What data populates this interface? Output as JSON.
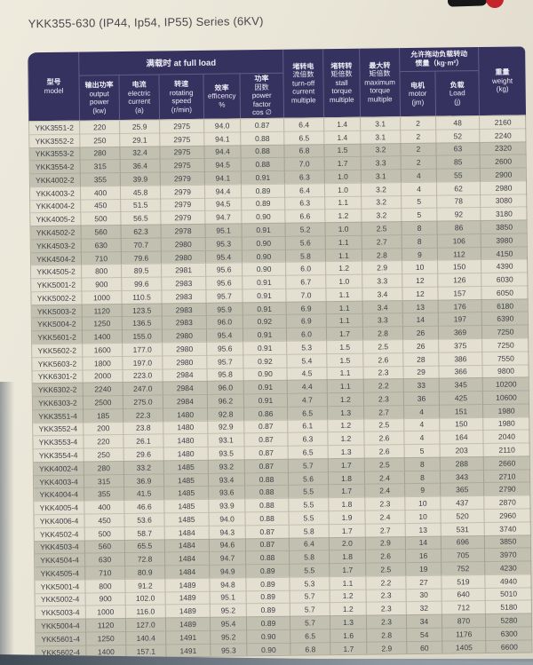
{
  "header": {
    "title": "YKK355-630 (IP44, Ip54, IP55) Series (6KV)"
  },
  "colors": {
    "header_bg": "#363260",
    "row_light": "#e3dfd1",
    "row_shaded": "#c2c0b1",
    "logo_bar": "#17171a",
    "logo_dot": "#c5242b"
  },
  "table": {
    "group_full_load": "满载时 at full load",
    "group_inertia_line1": "允许拖动负载转动",
    "group_inertia_line2": "惯量（kg·m²）",
    "columns": [
      {
        "key": "model",
        "lines": [
          "型号",
          "model"
        ]
      },
      {
        "key": "output-power",
        "lines": [
          "输出功率",
          "output",
          "power",
          "(kw)"
        ]
      },
      {
        "key": "current",
        "lines": [
          "电流",
          "electric",
          "current",
          "(a)"
        ]
      },
      {
        "key": "speed",
        "lines": [
          "转速",
          "rotating",
          "speed",
          "(r/min)"
        ]
      },
      {
        "key": "efficiency",
        "lines": [
          "效率",
          "efficency",
          "%"
        ]
      },
      {
        "key": "power-factor",
        "lines": [
          "功率",
          "因数",
          "power",
          "factor",
          "cos ∅"
        ]
      },
      {
        "key": "locked-current",
        "lines": [
          "堵转电",
          "流倍数",
          "turn-off",
          "current",
          "multiple"
        ]
      },
      {
        "key": "stall-torque",
        "lines": [
          "堵转转",
          "矩倍数",
          "stall",
          "torque",
          "multiple"
        ]
      },
      {
        "key": "max-torque",
        "lines": [
          "最大转",
          "矩倍数",
          "maximum",
          "torque",
          "multiple"
        ]
      },
      {
        "key": "inertia-motor",
        "lines": [
          "电机",
          "motor",
          "(jm)"
        ]
      },
      {
        "key": "inertia-load",
        "lines": [
          "负载",
          "Load",
          "(j)"
        ]
      },
      {
        "key": "weight",
        "lines": [
          "重量",
          "weight",
          "(kg)"
        ]
      }
    ],
    "rows": [
      [
        "YKK3551-2",
        "220",
        "25.9",
        "2975",
        "94.0",
        "0.87",
        "6.4",
        "1.4",
        "3.1",
        "2",
        "48",
        "2160"
      ],
      [
        "YKK3552-2",
        "250",
        "29.1",
        "2975",
        "94.1",
        "0.88",
        "6.5",
        "1.4",
        "3.1",
        "2",
        "52",
        "2240"
      ],
      [
        "YKK3553-2",
        "280",
        "32.4",
        "2975",
        "94.4",
        "0.88",
        "6.8",
        "1.5",
        "3.2",
        "2",
        "63",
        "2320"
      ],
      [
        "YKK3554-2",
        "315",
        "36.4",
        "2975",
        "94.5",
        "0.88",
        "7.0",
        "1.7",
        "3.3",
        "2",
        "85",
        "2600"
      ],
      [
        "YKK4002-2",
        "355",
        "39.9",
        "2979",
        "94.1",
        "0.91",
        "6.3",
        "1.0",
        "3.1",
        "4",
        "55",
        "2900"
      ],
      [
        "YKK4003-2",
        "400",
        "45.8",
        "2979",
        "94.4",
        "0.89",
        "6.4",
        "1.0",
        "3.2",
        "4",
        "62",
        "2980"
      ],
      [
        "YKK4004-2",
        "450",
        "51.5",
        "2979",
        "94.5",
        "0.89",
        "6.3",
        "1.1",
        "3.2",
        "5",
        "78",
        "3080"
      ],
      [
        "YKK4005-2",
        "500",
        "56.5",
        "2979",
        "94.7",
        "0.90",
        "6.6",
        "1.2",
        "3.2",
        "5",
        "92",
        "3180"
      ],
      [
        "YKK4502-2",
        "560",
        "62.3",
        "2978",
        "95.1",
        "0.91",
        "5.2",
        "1.0",
        "2.5",
        "8",
        "86",
        "3850"
      ],
      [
        "YKK4503-2",
        "630",
        "70.7",
        "2980",
        "95.3",
        "0.90",
        "5.6",
        "1.1",
        "2.7",
        "8",
        "106",
        "3980"
      ],
      [
        "YKK4504-2",
        "710",
        "79.6",
        "2980",
        "95.4",
        "0.90",
        "5.8",
        "1.1",
        "2.8",
        "9",
        "112",
        "4150"
      ],
      [
        "YKK4505-2",
        "800",
        "89.5",
        "2981",
        "95.6",
        "0.90",
        "6.0",
        "1.2",
        "2.9",
        "10",
        "150",
        "4390"
      ],
      [
        "YKK5001-2",
        "900",
        "99.6",
        "2983",
        "95.6",
        "0.91",
        "6.7",
        "1.0",
        "3.3",
        "12",
        "126",
        "6030"
      ],
      [
        "YKK5002-2",
        "1000",
        "110.5",
        "2983",
        "95.7",
        "0.91",
        "7.0",
        "1.1",
        "3.4",
        "12",
        "157",
        "6050"
      ],
      [
        "YKK5003-2",
        "1120",
        "123.5",
        "2983",
        "95.9",
        "0.91",
        "6.9",
        "1.1",
        "3.4",
        "13",
        "176",
        "6180"
      ],
      [
        "YKK5004-2",
        "1250",
        "136.5",
        "2983",
        "96.0",
        "0.92",
        "6.9",
        "1.1",
        "3.3",
        "14",
        "197",
        "6390"
      ],
      [
        "YKK5601-2",
        "1400",
        "155.0",
        "2980",
        "95.4",
        "0.91",
        "6.0",
        "1.7",
        "2.8",
        "26",
        "369",
        "7250"
      ],
      [
        "YKK5602-2",
        "1600",
        "177.0",
        "2980",
        "95.6",
        "0.91",
        "5.3",
        "1.5",
        "2.5",
        "26",
        "375",
        "7250"
      ],
      [
        "YKK5603-2",
        "1800",
        "197.0",
        "2980",
        "95.7",
        "0.92",
        "5.4",
        "1.5",
        "2.6",
        "28",
        "386",
        "7550"
      ],
      [
        "YKK6301-2",
        "2000",
        "223.0",
        "2984",
        "95.8",
        "0.90",
        "4.5",
        "1.1",
        "2.3",
        "29",
        "366",
        "9800"
      ],
      [
        "YKK6302-2",
        "2240",
        "247.0",
        "2984",
        "96.0",
        "0.91",
        "4.4",
        "1.1",
        "2.2",
        "33",
        "345",
        "10200"
      ],
      [
        "YKK6303-2",
        "2500",
        "275.0",
        "2984",
        "96.2",
        "0.91",
        "4.7",
        "1.2",
        "2.3",
        "36",
        "425",
        "10600"
      ],
      [
        "YKK3551-4",
        "185",
        "22.3",
        "1480",
        "92.8",
        "0.86",
        "6.5",
        "1.3",
        "2.7",
        "4",
        "151",
        "1980"
      ],
      [
        "YKK3552-4",
        "200",
        "23.8",
        "1480",
        "92.9",
        "0.87",
        "6.1",
        "1.2",
        "2.5",
        "4",
        "150",
        "1980"
      ],
      [
        "YKK3553-4",
        "220",
        "26.1",
        "1480",
        "93.1",
        "0.87",
        "6.3",
        "1.2",
        "2.6",
        "4",
        "164",
        "2040"
      ],
      [
        "YKK3554-4",
        "250",
        "29.6",
        "1480",
        "93.5",
        "0.87",
        "6.5",
        "1.3",
        "2.6",
        "5",
        "203",
        "2110"
      ],
      [
        "YKK4002-4",
        "280",
        "33.2",
        "1485",
        "93.2",
        "0.87",
        "5.7",
        "1.7",
        "2.5",
        "8",
        "288",
        "2660"
      ],
      [
        "YKK4003-4",
        "315",
        "36.9",
        "1485",
        "93.4",
        "0.88",
        "5.6",
        "1.8",
        "2.4",
        "8",
        "343",
        "2710"
      ],
      [
        "YKK4004-4",
        "355",
        "41.5",
        "1485",
        "93.6",
        "0.88",
        "5.5",
        "1.7",
        "2.4",
        "9",
        "365",
        "2790"
      ],
      [
        "YKK4005-4",
        "400",
        "46.6",
        "1485",
        "93.9",
        "0.88",
        "5.5",
        "1.8",
        "2.3",
        "10",
        "437",
        "2870"
      ],
      [
        "YKK4006-4",
        "450",
        "53.6",
        "1485",
        "94.0",
        "0.88",
        "5.5",
        "1.9",
        "2.4",
        "10",
        "520",
        "2960"
      ],
      [
        "YKK4502-4",
        "500",
        "58.7",
        "1484",
        "94.3",
        "0.87",
        "5.8",
        "1.7",
        "2.7",
        "13",
        "531",
        "3740"
      ],
      [
        "YKK4503-4",
        "560",
        "65.5",
        "1484",
        "94.6",
        "0.87",
        "6.4",
        "2.0",
        "2.9",
        "14",
        "696",
        "3850"
      ],
      [
        "YKK4504-4",
        "630",
        "72.8",
        "1484",
        "94.7",
        "0.88",
        "5.8",
        "1.8",
        "2.6",
        "16",
        "705",
        "3970"
      ],
      [
        "YKK4505-4",
        "710",
        "80.9",
        "1484",
        "94.9",
        "0.89",
        "5.5",
        "1.7",
        "2.5",
        "19",
        "752",
        "4230"
      ],
      [
        "YKK5001-4",
        "800",
        "91.2",
        "1489",
        "94.8",
        "0.89",
        "5.3",
        "1.1",
        "2.2",
        "27",
        "519",
        "4940"
      ],
      [
        "YKK5002-4",
        "900",
        "102.0",
        "1489",
        "95.1",
        "0.89",
        "5.7",
        "1.2",
        "2.3",
        "30",
        "640",
        "5010"
      ],
      [
        "YKK5003-4",
        "1000",
        "116.0",
        "1489",
        "95.2",
        "0.89",
        "5.7",
        "1.2",
        "2.3",
        "32",
        "712",
        "5180"
      ],
      [
        "YKK5004-4",
        "1120",
        "127.0",
        "1489",
        "95.4",
        "0.89",
        "5.7",
        "1.3",
        "2.3",
        "34",
        "870",
        "5280"
      ],
      [
        "YKK5601-4",
        "1250",
        "140.4",
        "1491",
        "95.2",
        "0.90",
        "6.5",
        "1.6",
        "2.8",
        "54",
        "1176",
        "6300"
      ],
      [
        "YKK5602-4",
        "1400",
        "157.1",
        "1491",
        "95.3",
        "0.90",
        "6.8",
        "1.7",
        "2.9",
        "60",
        "1405",
        "6600"
      ]
    ]
  }
}
